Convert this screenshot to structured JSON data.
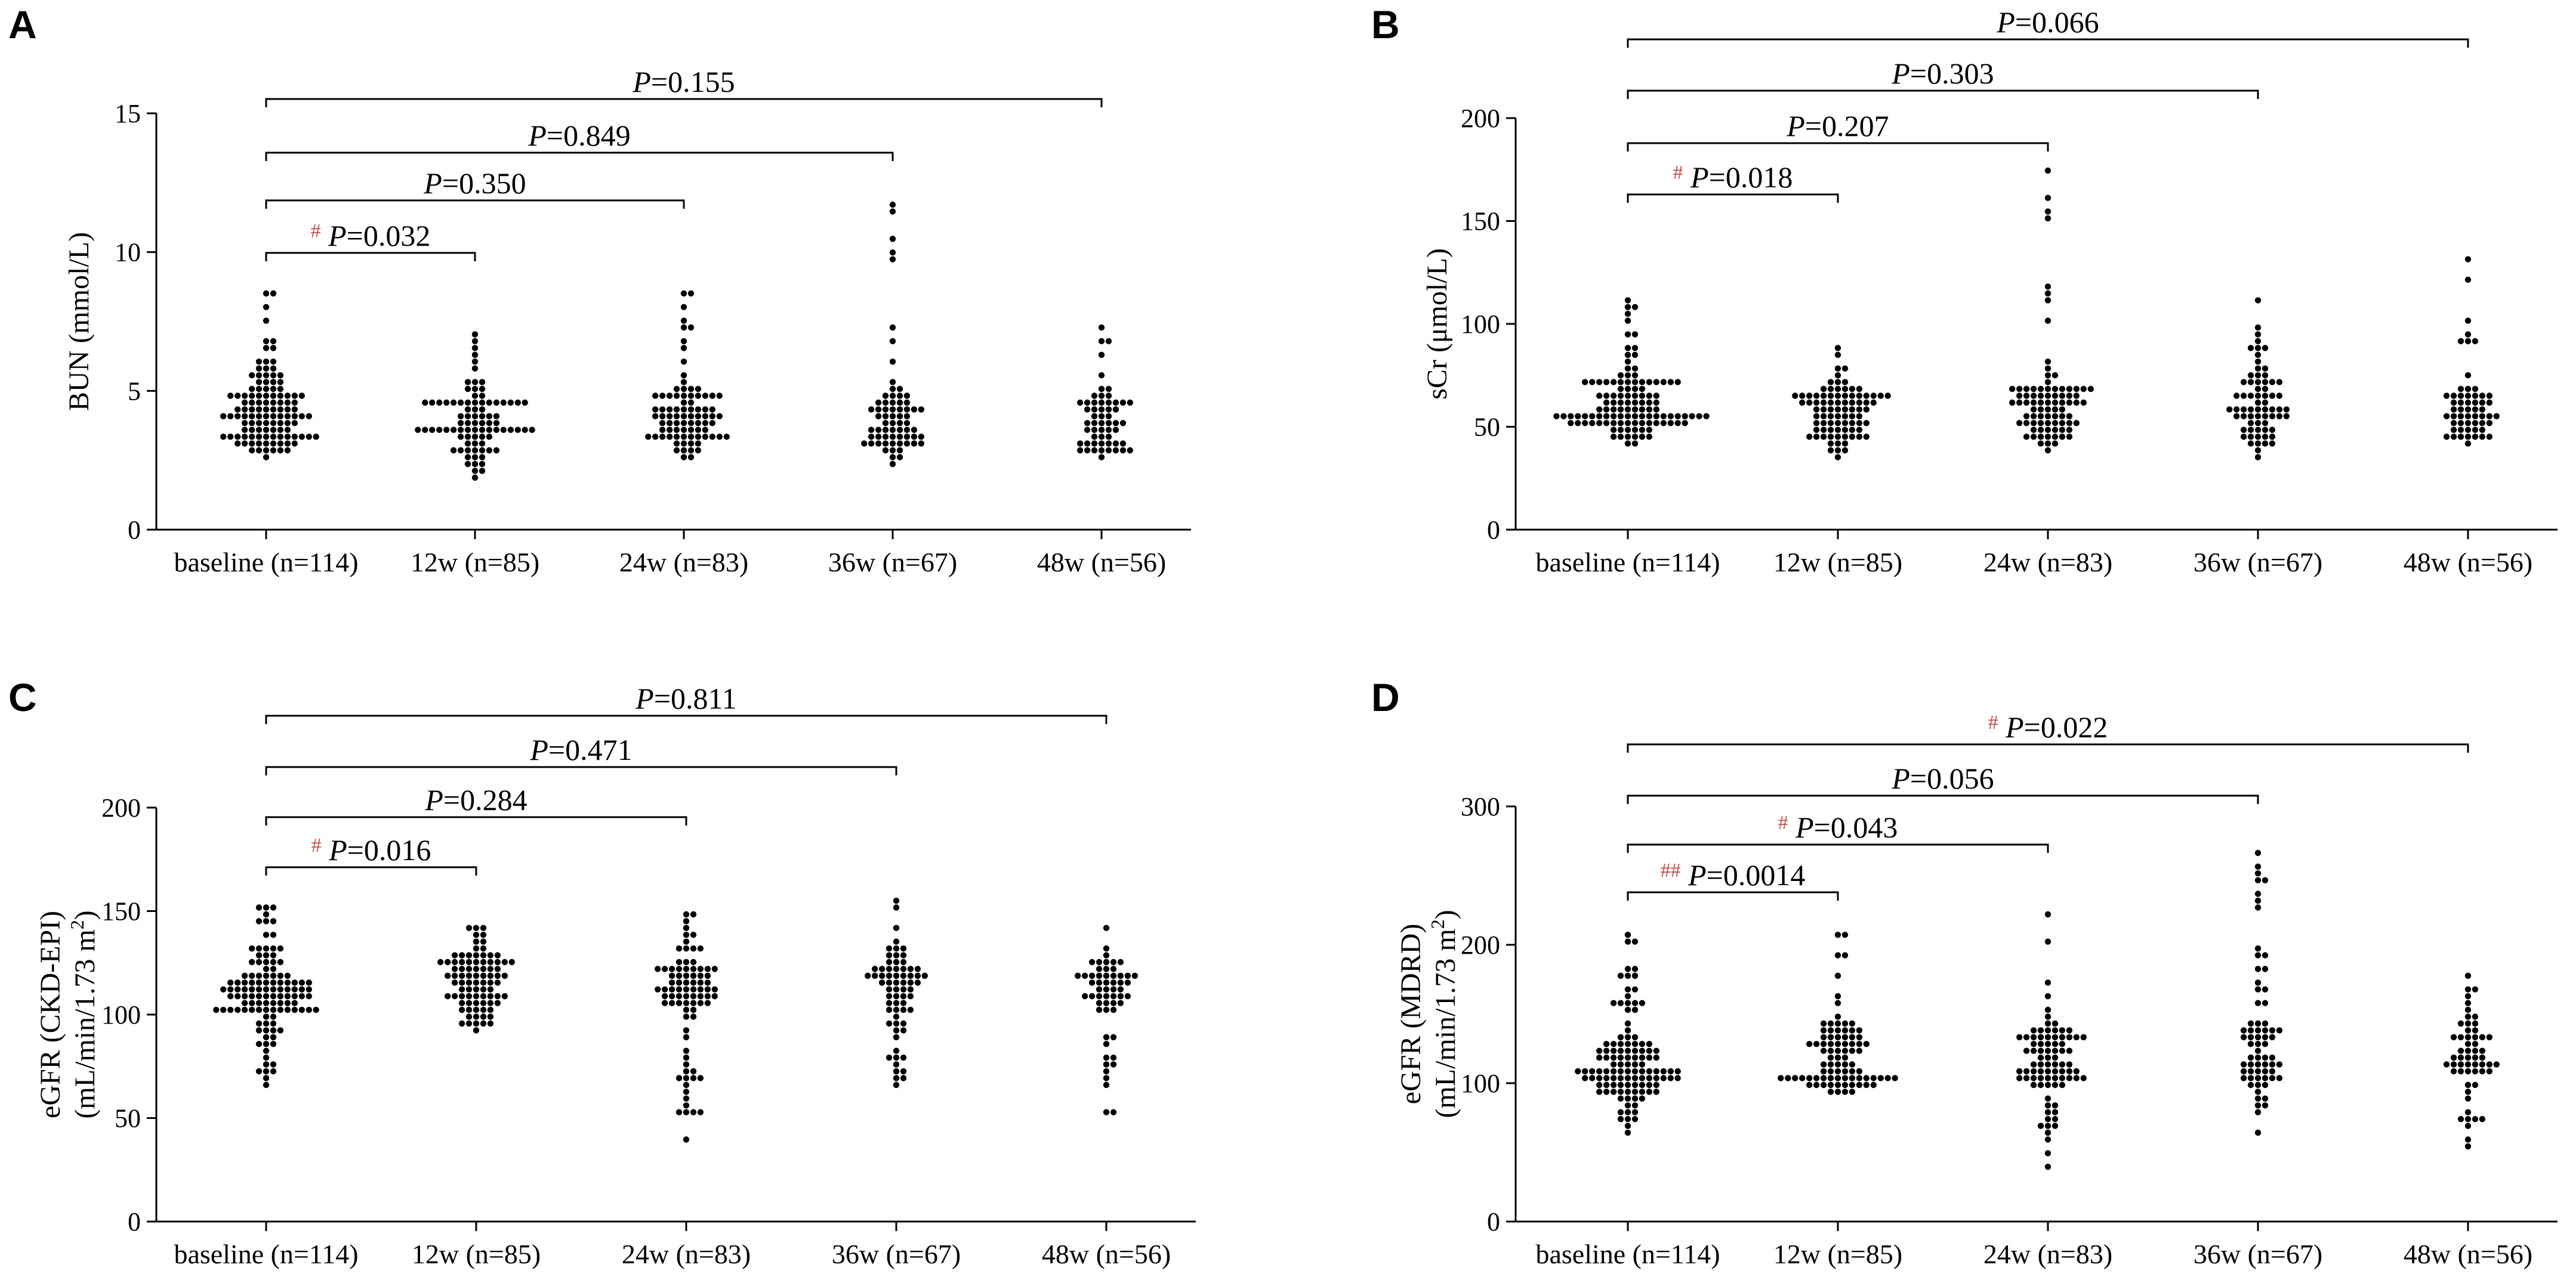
{
  "chart_data": [
    {
      "panel": "A",
      "type": "scatter",
      "subtype": "dot-plot",
      "ylabel_lines": [
        "BUN (mmol/L)"
      ],
      "ylim": [
        0,
        15
      ],
      "yticks": [
        0,
        5,
        10,
        15
      ],
      "categories": [
        "baseline (n=114)",
        "12w (n=85)",
        "24w (n=83)",
        "36w (n=67)",
        "48w (n=56)"
      ],
      "series": [
        {
          "name": "baseline (n=114)",
          "n": 114,
          "min": 2.7,
          "q1": 3.6,
          "median": 4.2,
          "q3": 4.9,
          "max": 8.5
        },
        {
          "name": "12w (n=85)",
          "n": 85,
          "min": 1.9,
          "q1": 3.4,
          "median": 3.9,
          "q3": 4.6,
          "max": 7.1
        },
        {
          "name": "24w (n=83)",
          "n": 83,
          "min": 2.6,
          "q1": 3.6,
          "median": 4.1,
          "q3": 4.8,
          "max": 8.6
        },
        {
          "name": "36w (n=67)",
          "n": 67,
          "min": 2.4,
          "q1": 3.6,
          "median": 4.2,
          "q3": 5.0,
          "max": 11.8
        },
        {
          "name": "48w (n=56)",
          "n": 56,
          "min": 2.6,
          "q1": 3.4,
          "median": 4.0,
          "q3": 4.8,
          "max": 7.4
        }
      ],
      "comparisons": [
        {
          "to": 1,
          "italic": "P",
          "text": "=0.032",
          "mark": "#"
        },
        {
          "to": 2,
          "italic": "P",
          "text": "=0.350",
          "mark": ""
        },
        {
          "to": 3,
          "italic": "P",
          "text": "=0.849",
          "mark": ""
        },
        {
          "to": 4,
          "italic": "P",
          "text": "=0.155",
          "mark": ""
        }
      ]
    },
    {
      "panel": "B",
      "type": "scatter",
      "subtype": "dot-plot",
      "ylabel_lines": [
        "sCr (μmol/L)"
      ],
      "ylim": [
        0,
        200
      ],
      "yticks": [
        0,
        50,
        100,
        150,
        200
      ],
      "categories": [
        "baseline (n=114)",
        "12w (n=85)",
        "24w (n=83)",
        "36w (n=67)",
        "48w (n=56)"
      ],
      "series": [
        {
          "name": "baseline (n=114)",
          "n": 114,
          "min": 42,
          "q1": 56,
          "median": 64,
          "q3": 72,
          "max": 112
        },
        {
          "name": "12w (n=85)",
          "n": 85,
          "min": 36,
          "q1": 50,
          "median": 58,
          "q3": 66,
          "max": 87
        },
        {
          "name": "24w (n=83)",
          "n": 83,
          "min": 40,
          "q1": 52,
          "median": 60,
          "q3": 68,
          "max": 174
        },
        {
          "name": "36w (n=67)",
          "n": 67,
          "min": 35,
          "q1": 50,
          "median": 60,
          "q3": 70,
          "max": 112
        },
        {
          "name": "48w (n=56)",
          "n": 56,
          "min": 41,
          "q1": 52,
          "median": 60,
          "q3": 67,
          "max": 133
        }
      ],
      "comparisons": [
        {
          "to": 1,
          "italic": "P",
          "text": "=0.018",
          "mark": "#"
        },
        {
          "to": 2,
          "italic": "P",
          "text": "=0.207",
          "mark": ""
        },
        {
          "to": 3,
          "italic": "P",
          "text": "=0.303",
          "mark": ""
        },
        {
          "to": 4,
          "italic": "P",
          "text": "=0.066",
          "mark": ""
        }
      ]
    },
    {
      "panel": "C",
      "type": "scatter",
      "subtype": "dot-plot",
      "ylabel_lines": [
        "eGFR (CKD-EPI)",
        "(mL/min/1.73 m",
        "2",
        ")"
      ],
      "ylim": [
        0,
        200
      ],
      "yticks": [
        0,
        50,
        100,
        150,
        200
      ],
      "categories": [
        "baseline (n=114)",
        "12w (n=85)",
        "24w (n=83)",
        "36w (n=67)",
        "48w (n=56)"
      ],
      "series": [
        {
          "name": "baseline (n=114)",
          "n": 114,
          "min": 66,
          "q1": 101,
          "median": 110,
          "q3": 119,
          "max": 153
        },
        {
          "name": "12w (n=85)",
          "n": 85,
          "min": 92,
          "q1": 108,
          "median": 117,
          "q3": 126,
          "max": 143
        },
        {
          "name": "24w (n=83)",
          "n": 83,
          "min": 39,
          "q1": 104,
          "median": 113,
          "q3": 123,
          "max": 148
        },
        {
          "name": "36w (n=67)",
          "n": 67,
          "min": 66,
          "q1": 103,
          "median": 112,
          "q3": 121,
          "max": 155
        },
        {
          "name": "48w (n=56)",
          "n": 56,
          "min": 53,
          "q1": 101,
          "median": 110,
          "q3": 119,
          "max": 143
        }
      ],
      "comparisons": [
        {
          "to": 1,
          "italic": "P",
          "text": "=0.016",
          "mark": "#"
        },
        {
          "to": 2,
          "italic": "P",
          "text": "=0.284",
          "mark": ""
        },
        {
          "to": 3,
          "italic": "P",
          "text": "=0.471",
          "mark": ""
        },
        {
          "to": 4,
          "italic": "P",
          "text": "=0.811",
          "mark": ""
        }
      ]
    },
    {
      "panel": "D",
      "type": "scatter",
      "subtype": "dot-plot",
      "ylabel_lines": [
        "eGFR (MDRD)",
        "(mL/min/1.73 m",
        "2",
        ")"
      ],
      "ylim": [
        0,
        300
      ],
      "yticks": [
        0,
        100,
        200,
        300
      ],
      "categories": [
        "baseline (n=114)",
        "12w (n=85)",
        "24w (n=83)",
        "36w (n=67)",
        "48w (n=56)"
      ],
      "series": [
        {
          "name": "baseline (n=114)",
          "n": 114,
          "min": 66,
          "q1": 98,
          "median": 112,
          "q3": 128,
          "max": 209
        },
        {
          "name": "12w (n=85)",
          "n": 85,
          "min": 92,
          "q1": 108,
          "median": 125,
          "q3": 142,
          "max": 208
        },
        {
          "name": "24w (n=83)",
          "n": 83,
          "min": 38,
          "q1": 103,
          "median": 118,
          "q3": 135,
          "max": 220
        },
        {
          "name": "36w (n=67)",
          "n": 67,
          "min": 64,
          "q1": 103,
          "median": 120,
          "q3": 137,
          "max": 265
        },
        {
          "name": "48w (n=56)",
          "n": 56,
          "min": 52,
          "q1": 105,
          "median": 118,
          "q3": 132,
          "max": 178
        }
      ],
      "comparisons": [
        {
          "to": 1,
          "italic": "P",
          "text": "=0.0014",
          "mark": "##"
        },
        {
          "to": 2,
          "italic": "P",
          "text": "=0.043",
          "mark": "#"
        },
        {
          "to": 3,
          "italic": "P",
          "text": "=0.056",
          "mark": ""
        },
        {
          "to": 4,
          "italic": "P",
          "text": "=0.022",
          "mark": "#"
        }
      ]
    }
  ],
  "colors": {
    "points": "#000000",
    "axes": "#000000",
    "significance_mark": "#c0504d"
  }
}
